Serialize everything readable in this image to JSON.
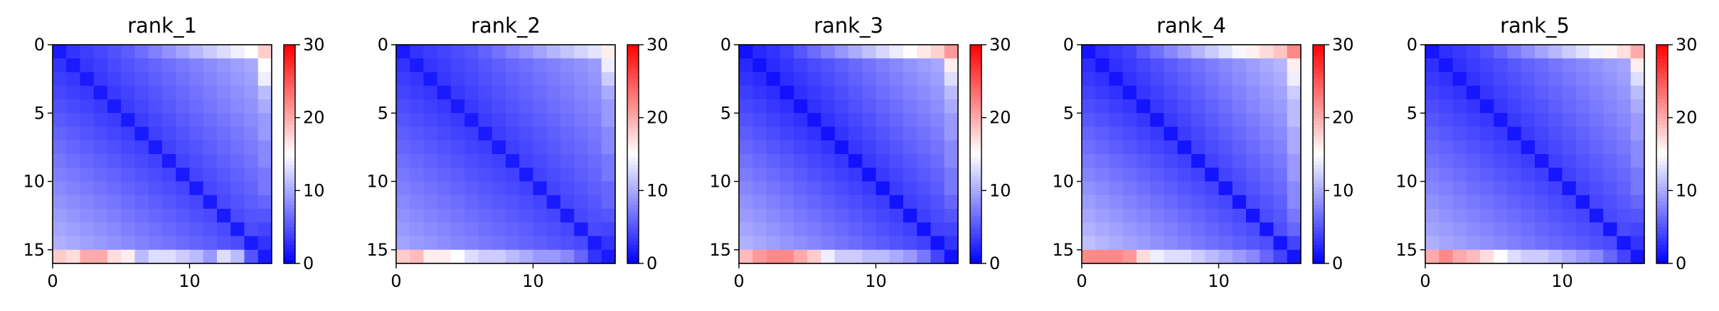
{
  "colormap": {
    "low_color": "#0000ff",
    "mid_color": "#ffffff",
    "high_color": "#ff0000",
    "vmin": 0,
    "vmax": 30
  },
  "chart_data": [
    {
      "type": "heatmap",
      "title": "rank_1",
      "size": 16,
      "x_ticks": [
        "0",
        "10"
      ],
      "y_ticks": [
        "0",
        "5",
        "10",
        "15"
      ],
      "colorbar_ticks": [
        "0",
        "10",
        "20",
        "30"
      ],
      "diagonal": 2.5,
      "near_gradient": 0.45,
      "far_gradient": 0.22,
      "edge_boost": [
        0,
        0,
        0,
        0,
        0,
        0,
        0,
        0,
        0,
        0,
        0,
        0,
        0,
        0,
        0.8,
        2.2
      ],
      "bottom_row": [
        18,
        17,
        20,
        20,
        17,
        16,
        11,
        13,
        13,
        12,
        11,
        9,
        13,
        11,
        5,
        1
      ],
      "right_col": [
        18,
        15,
        14,
        11,
        10,
        9,
        9,
        8,
        8,
        7,
        7,
        6,
        5,
        4,
        3,
        2
      ],
      "ylim": [
        16,
        0
      ],
      "xlim": [
        0,
        16
      ]
    },
    {
      "type": "heatmap",
      "title": "rank_2",
      "size": 16,
      "x_ticks": [
        "0",
        "10"
      ],
      "y_ticks": [
        "0",
        "5",
        "10",
        "15"
      ],
      "colorbar_ticks": [
        "0",
        "10",
        "20",
        "30"
      ],
      "diagonal": 2.5,
      "near_gradient": 0.4,
      "far_gradient": 0.2,
      "edge_boost": [
        0,
        0,
        0,
        0,
        0,
        0,
        0,
        0,
        0,
        0,
        0,
        0,
        0,
        0.6,
        1.8,
        3.2
      ],
      "bottom_row": [
        18,
        19,
        16,
        16,
        15,
        13,
        12,
        12,
        11,
        10,
        9,
        9,
        8,
        6,
        3,
        1
      ],
      "right_col": [
        16,
        14,
        12,
        10,
        9,
        9,
        8,
        8,
        7,
        7,
        6,
        6,
        5,
        4,
        3,
        2
      ],
      "ylim": [
        16,
        0
      ],
      "xlim": [
        0,
        16
      ]
    },
    {
      "type": "heatmap",
      "title": "rank_3",
      "size": 16,
      "x_ticks": [
        "0",
        "10"
      ],
      "y_ticks": [
        "0",
        "5",
        "10",
        "15"
      ],
      "colorbar_ticks": [
        "0",
        "10",
        "20",
        "30"
      ],
      "diagonal": 1.8,
      "near_gradient": 0.5,
      "far_gradient": 0.22,
      "edge_boost": [
        0,
        0,
        0,
        0,
        0,
        0,
        0,
        0,
        0,
        0,
        0,
        0,
        0,
        0.8,
        2.4,
        3.5
      ],
      "bottom_row": [
        19,
        21,
        22,
        22,
        20,
        18,
        14,
        12,
        12,
        11,
        11,
        10,
        9,
        7,
        4,
        1
      ],
      "right_col": [
        21,
        16,
        13,
        11,
        10,
        9,
        9,
        8,
        8,
        7,
        7,
        6,
        5,
        4,
        3,
        2
      ],
      "ylim": [
        16,
        0
      ],
      "xlim": [
        0,
        16
      ]
    },
    {
      "type": "heatmap",
      "title": "rank_4",
      "size": 16,
      "x_ticks": [
        "0",
        "10"
      ],
      "y_ticks": [
        "0",
        "5",
        "10",
        "15"
      ],
      "colorbar_ticks": [
        "0",
        "10",
        "20",
        "30"
      ],
      "diagonal": 2.0,
      "near_gradient": 0.5,
      "far_gradient": 0.3,
      "edge_boost": [
        0,
        0,
        0,
        0,
        0,
        0,
        0,
        0,
        0,
        0,
        0,
        0,
        0,
        0.8,
        2.5,
        4.0
      ],
      "bottom_row": [
        22,
        22,
        22,
        21,
        17,
        14,
        13,
        13,
        12,
        11,
        10,
        9,
        8,
        6,
        4,
        1
      ],
      "right_col": [
        22,
        16,
        14,
        12,
        11,
        11,
        10,
        10,
        9,
        9,
        8,
        8,
        7,
        6,
        4,
        2
      ],
      "ylim": [
        16,
        0
      ],
      "xlim": [
        0,
        16
      ]
    },
    {
      "type": "heatmap",
      "title": "rank_5",
      "size": 16,
      "x_ticks": [
        "0",
        "10"
      ],
      "y_ticks": [
        "0",
        "5",
        "10",
        "15"
      ],
      "colorbar_ticks": [
        "0",
        "10",
        "20",
        "30"
      ],
      "diagonal": 2.2,
      "near_gradient": 0.45,
      "far_gradient": 0.24,
      "edge_boost": [
        0,
        0,
        0,
        0,
        0,
        0,
        0,
        0,
        0,
        0,
        0,
        0,
        0,
        0.8,
        2.2,
        3.3
      ],
      "bottom_row": [
        20,
        22,
        20,
        19,
        17,
        15,
        13,
        12,
        12,
        11,
        10,
        9,
        8,
        6,
        4,
        1
      ],
      "right_col": [
        20,
        16,
        13,
        11,
        10,
        9,
        9,
        8,
        8,
        7,
        7,
        6,
        5,
        4,
        3,
        2
      ],
      "ylim": [
        16,
        0
      ],
      "xlim": [
        0,
        16
      ]
    }
  ]
}
